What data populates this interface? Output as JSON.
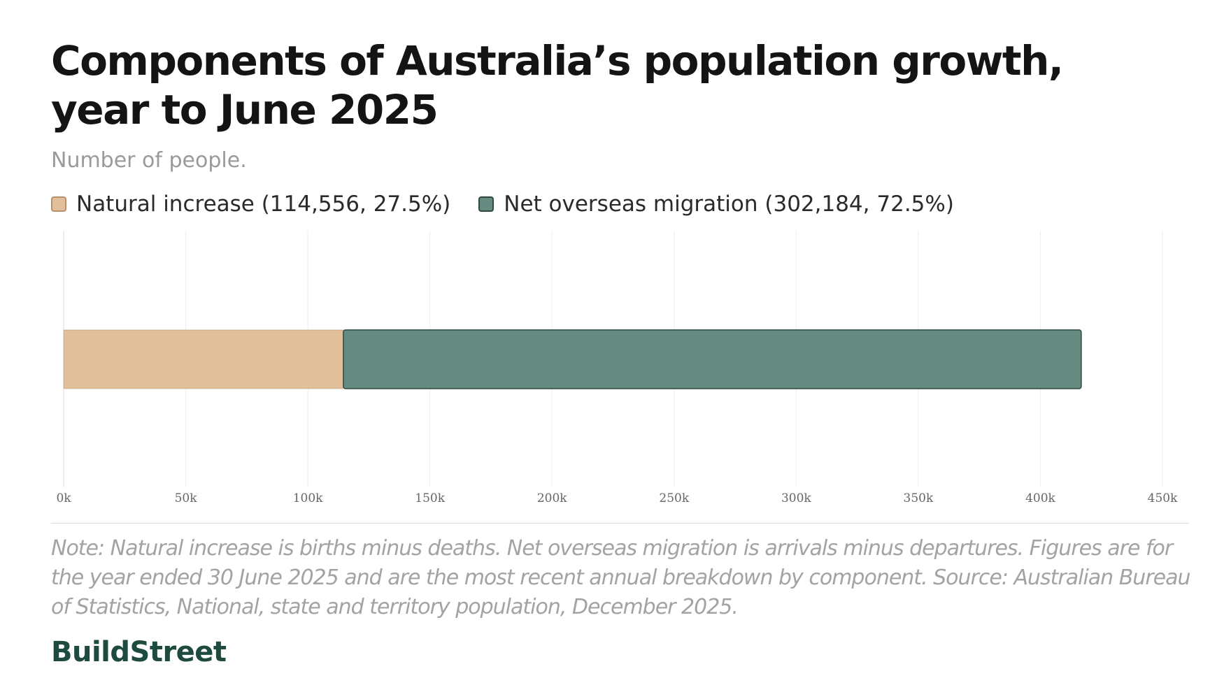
{
  "header": {
    "title": "Components of Australia’s population growth, year to June 2025",
    "subtitle": "Number of people."
  },
  "legend": [
    {
      "label": "Natural increase (114,556, 27.5%)",
      "swatch": "natural"
    },
    {
      "label": "Net overseas migration (302,184, 72.5%)",
      "swatch": "nom"
    }
  ],
  "chart_data": {
    "type": "bar",
    "orientation": "horizontal",
    "stacked": true,
    "categories": [
      ""
    ],
    "series": [
      {
        "name": "Natural increase",
        "values": [
          114556
        ],
        "color": "#e0bf9a",
        "stroke": "#b88f66"
      },
      {
        "name": "Net overseas migration",
        "values": [
          302184
        ],
        "color": "#668b81",
        "stroke": "#2e4a43"
      }
    ],
    "xlim": [
      0,
      450000
    ],
    "xticks": [
      0,
      50000,
      100000,
      150000,
      200000,
      250000,
      300000,
      350000,
      400000,
      450000
    ],
    "xtick_labels": [
      "0k",
      "50k",
      "100k",
      "150k",
      "200k",
      "250k",
      "300k",
      "350k",
      "400k",
      "450k"
    ],
    "grid": true,
    "legend_position": "top-left"
  },
  "footer": {
    "note": "Note: Natural increase is births minus deaths. Net overseas migration is arrivals minus departures. Figures are for the year ended 30 June 2025 and are the most recent annual breakdown by component. Source: Australian Bureau of Statistics, National, state and territory population, December 2025.",
    "brand": "BuildStreet"
  },
  "colors": {
    "brand": "#1f4a40",
    "muted_text": "#9a9a9a",
    "grid": "#eeeeee"
  }
}
